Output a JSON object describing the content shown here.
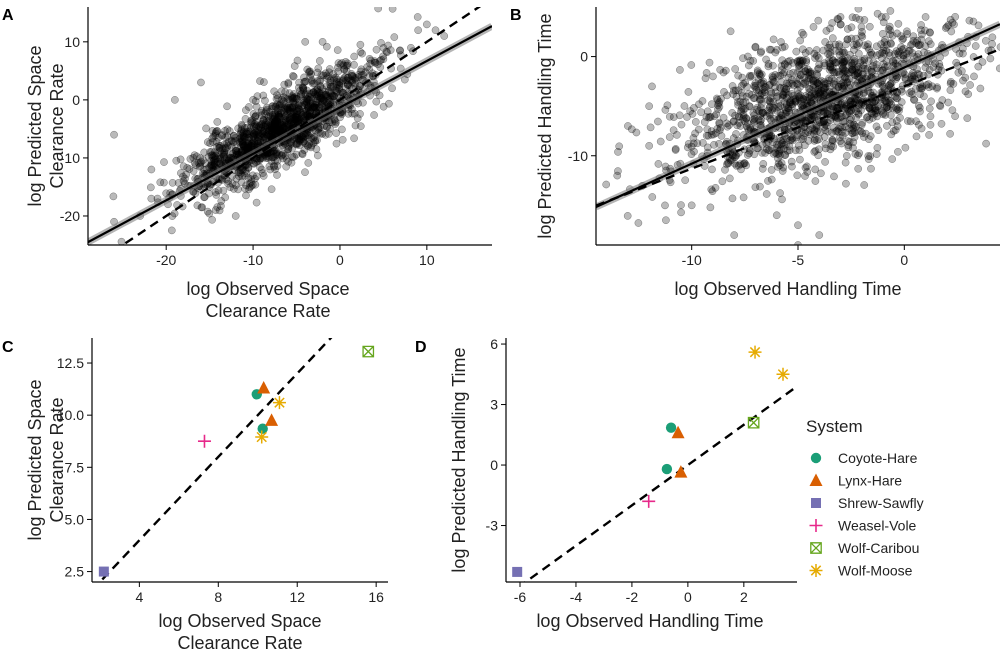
{
  "chart_data": [
    {
      "id": "A",
      "type": "scatter",
      "panel_label": "A",
      "xlabel": [
        "log Observed Space",
        "Clearance Rate"
      ],
      "ylabel": [
        "log Predicted Space",
        "Clearance Rate"
      ],
      "xlim": [
        -29,
        17.5
      ],
      "ylim": [
        -25,
        16
      ],
      "xticks": [
        -20,
        -10,
        0,
        10
      ],
      "yticks": [
        -20,
        -10,
        0,
        10
      ],
      "tick_labels_x": [
        "-20",
        "-10",
        "0",
        "10"
      ],
      "tick_labels_y": [
        "-20",
        "-10",
        "0",
        "10"
      ],
      "cloud": {
        "n": 1400,
        "center": [
          -7,
          -5
        ],
        "slope": 0.85,
        "spread_x": 5.5,
        "noise_y": 3.2,
        "seed": 11
      },
      "extra_points": [
        [
          -23,
          -20
        ],
        [
          -26,
          -21
        ],
        [
          -18,
          -14
        ],
        [
          -15,
          -15
        ],
        [
          -12,
          -20
        ],
        [
          -21,
          -17
        ],
        [
          9,
          12
        ],
        [
          10,
          13
        ],
        [
          11,
          12
        ],
        [
          -2,
          10
        ],
        [
          -4,
          10
        ],
        [
          5,
          7
        ],
        [
          -16,
          3
        ],
        [
          -19,
          0
        ],
        [
          -10,
          0
        ],
        [
          3,
          3
        ],
        [
          6,
          2
        ],
        [
          1,
          -1
        ],
        [
          -26,
          -6
        ],
        [
          12,
          11
        ]
      ],
      "fit_line": {
        "slope": 0.8,
        "intercept": -1.3
      },
      "identity_line": {
        "slope": 1,
        "intercept": 0
      }
    },
    {
      "id": "B",
      "type": "scatter",
      "panel_label": "B",
      "xlabel": [
        "log Observed Handling Time"
      ],
      "ylabel": [
        "log Predicted Handling Time"
      ],
      "xlim": [
        -14.5,
        4.5
      ],
      "ylim": [
        -19,
        5
      ],
      "xticks": [
        -10,
        -5,
        0
      ],
      "yticks": [
        -10,
        0
      ],
      "tick_labels_x": [
        "-10",
        "-5",
        "0"
      ],
      "tick_labels_y": [
        "-10",
        "0"
      ],
      "cloud": {
        "n": 1500,
        "center": [
          -4,
          -4.5
        ],
        "slope": 0.6,
        "spread_x": 3.3,
        "noise_y": 3.2,
        "seed": 23
      },
      "extra_points": [
        [
          -13,
          -7
        ],
        [
          -12,
          -5
        ],
        [
          -13.5,
          -12
        ],
        [
          -10,
          -15
        ],
        [
          -8,
          -18
        ],
        [
          -5,
          -19
        ],
        [
          -5,
          -17
        ],
        [
          2,
          3
        ],
        [
          3,
          2
        ],
        [
          1,
          4
        ],
        [
          -3,
          4
        ],
        [
          -7,
          1
        ],
        [
          -9,
          -2
        ],
        [
          -12,
          -9
        ],
        [
          -6,
          -16
        ],
        [
          -4,
          -18
        ]
      ],
      "fit_line": {
        "slope": 0.97,
        "intercept": -1.1
      },
      "identity_line": {
        "slope": 0.83,
        "intercept": -3.0
      }
    },
    {
      "id": "C",
      "type": "scatter",
      "panel_label": "C",
      "xlabel": [
        "log Observed Space",
        "Clearance Rate"
      ],
      "ylabel": [
        "log Predicted Space",
        "Clearance Rate"
      ],
      "xlim": [
        1.6,
        16.6
      ],
      "ylim": [
        2.0,
        13.7
      ],
      "xticks": [
        4,
        8,
        12,
        16
      ],
      "yticks": [
        2.5,
        5.0,
        7.5,
        10.0,
        12.5
      ],
      "tick_labels_x": [
        "4",
        "8",
        "12",
        "16"
      ],
      "tick_labels_y": [
        "2.5",
        "5.0",
        "7.5",
        "10.0",
        "12.5"
      ],
      "points": [
        {
          "system": "Coyote-Hare",
          "x": 9.95,
          "y": 11.0
        },
        {
          "system": "Coyote-Hare",
          "x": 10.25,
          "y": 9.35
        },
        {
          "system": "Lynx-Hare",
          "x": 10.3,
          "y": 11.3
        },
        {
          "system": "Lynx-Hare",
          "x": 10.7,
          "y": 9.75
        },
        {
          "system": "Shrew-Sawfly",
          "x": 2.2,
          "y": 2.5
        },
        {
          "system": "Weasel-Vole",
          "x": 7.3,
          "y": 8.75
        },
        {
          "system": "Wolf-Caribou",
          "x": 15.6,
          "y": 13.05
        },
        {
          "system": "Wolf-Moose",
          "x": 11.1,
          "y": 10.6
        },
        {
          "system": "Wolf-Moose",
          "x": 10.2,
          "y": 8.95
        }
      ],
      "identity_line": {
        "slope": 1,
        "intercept": 0
      }
    },
    {
      "id": "D",
      "type": "scatter",
      "panel_label": "D",
      "xlabel": [
        "log Observed Handling Time"
      ],
      "ylabel": [
        "log Predicted Handling Time"
      ],
      "xlim": [
        -6.5,
        3.9
      ],
      "ylim": [
        -5.8,
        6.3
      ],
      "xticks": [
        -6,
        -4,
        -2,
        0,
        2
      ],
      "yticks": [
        -3,
        0,
        3,
        6
      ],
      "tick_labels_x": [
        "-6",
        "-4",
        "-2",
        "0",
        "2"
      ],
      "tick_labels_y": [
        "-3",
        "0",
        "3",
        "6"
      ],
      "points": [
        {
          "system": "Coyote-Hare",
          "x": -0.6,
          "y": 1.85
        },
        {
          "system": "Coyote-Hare",
          "x": -0.75,
          "y": -0.2
        },
        {
          "system": "Lynx-Hare",
          "x": -0.35,
          "y": 1.6
        },
        {
          "system": "Lynx-Hare",
          "x": -0.25,
          "y": -0.35
        },
        {
          "system": "Shrew-Sawfly",
          "x": -6.1,
          "y": -5.3
        },
        {
          "system": "Weasel-Vole",
          "x": -1.4,
          "y": -1.8
        },
        {
          "system": "Wolf-Caribou",
          "x": 2.35,
          "y": 2.1
        },
        {
          "system": "Wolf-Moose",
          "x": 2.4,
          "y": 5.6
        },
        {
          "system": "Wolf-Moose",
          "x": 3.4,
          "y": 4.5
        }
      ],
      "identity_line": {
        "slope": 1,
        "intercept": 0
      }
    }
  ],
  "legend": {
    "title": "System",
    "position": "right",
    "entries": [
      {
        "label": "Coyote-Hare",
        "color": "#1b9e77",
        "shape": "circle"
      },
      {
        "label": "Lynx-Hare",
        "color": "#d95f02",
        "shape": "triangle"
      },
      {
        "label": "Shrew-Sawfly",
        "color": "#7570b3",
        "shape": "square"
      },
      {
        "label": "Weasel-Vole",
        "color": "#e7298a",
        "shape": "plus"
      },
      {
        "label": "Wolf-Caribou",
        "color": "#66a61e",
        "shape": "boxcross"
      },
      {
        "label": "Wolf-Moose",
        "color": "#e6ab02",
        "shape": "asterisk"
      }
    ]
  }
}
